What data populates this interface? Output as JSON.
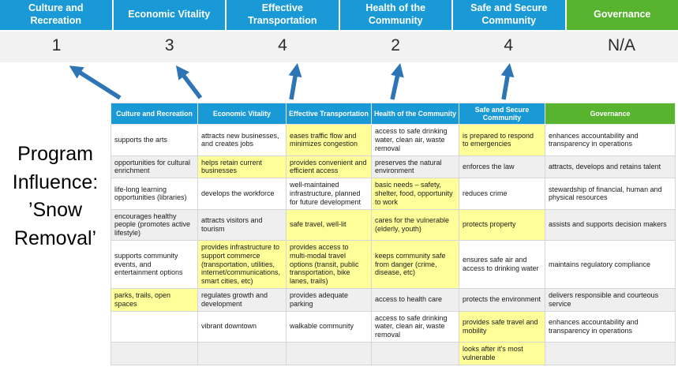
{
  "title": {
    "text": "Program Influence: ’Snow Removal’"
  },
  "colors": {
    "blue": "#1999D6",
    "green": "#58B32F",
    "highlight": "#FFFF99",
    "arrow": "#2E75B6",
    "scorebg": "#F2F2F2",
    "band": "#EFEFEF",
    "border": "#D6D6D6"
  },
  "summary": {
    "columns": [
      {
        "label": "Culture and Recreation",
        "score": "1",
        "theme": "blue"
      },
      {
        "label": "Economic Vitality",
        "score": "3",
        "theme": "blue"
      },
      {
        "label": "Effective Transportation",
        "score": "4",
        "theme": "blue"
      },
      {
        "label": "Health of the Community",
        "score": "2",
        "theme": "blue"
      },
      {
        "label": "Safe and Secure Community",
        "score": "4",
        "theme": "blue"
      },
      {
        "label": "Governance",
        "score": "N/A",
        "theme": "green"
      }
    ]
  },
  "matrix": {
    "headers": [
      {
        "label": "Culture and Recreation",
        "theme": "blue"
      },
      {
        "label": "Economic Vitality",
        "theme": "blue"
      },
      {
        "label": "Effective Transportation",
        "theme": "blue"
      },
      {
        "label": "Health of the Community",
        "theme": "blue"
      },
      {
        "label": "Safe and Secure Community",
        "theme": "blue"
      },
      {
        "label": "Governance",
        "theme": "green"
      }
    ],
    "rows": [
      [
        {
          "text": "supports the arts",
          "highlight": false
        },
        {
          "text": "attracts new businesses, and creates jobs",
          "highlight": false
        },
        {
          "text": "eases traffic flow and minimizes congestion",
          "highlight": true
        },
        {
          "text": "access to safe drinking water, clean air, waste removal",
          "highlight": false
        },
        {
          "text": "is prepared to respond to emergencies",
          "highlight": true
        },
        {
          "text": "enhances accountability and transparency in operations",
          "highlight": false
        }
      ],
      [
        {
          "text": "opportunities for cultural enrichment",
          "highlight": false
        },
        {
          "text": "helps retain current businesses",
          "highlight": true
        },
        {
          "text": "provides convenient and efficient access",
          "highlight": true
        },
        {
          "text": "preserves the natural environment",
          "highlight": false
        },
        {
          "text": "enforces the law",
          "highlight": false
        },
        {
          "text": "attracts, develops and retains talent",
          "highlight": false
        }
      ],
      [
        {
          "text": "life-long learning opportunities (libraries)",
          "highlight": false
        },
        {
          "text": "develops the workforce",
          "highlight": false
        },
        {
          "text": "well-maintained infrastructure, planned for future development",
          "highlight": false
        },
        {
          "text": "basic needs – safety, shelter, food, opportunity to work",
          "highlight": true
        },
        {
          "text": "reduces crime",
          "highlight": false
        },
        {
          "text": "stewardship of financial, human and physical resources",
          "highlight": false
        }
      ],
      [
        {
          "text": "encourages healthy people (promotes active lifestyle)",
          "highlight": false
        },
        {
          "text": "attracts visitors and tourism",
          "highlight": false
        },
        {
          "text": "safe travel, well-lit",
          "highlight": true
        },
        {
          "text": "cares for the vulnerable (elderly, youth)",
          "highlight": true
        },
        {
          "text": "protects property",
          "highlight": true
        },
        {
          "text": "assists and supports decision makers",
          "highlight": false
        }
      ],
      [
        {
          "text": "supports community events, and entertainment options",
          "highlight": false
        },
        {
          "text": "provides infrastructure to support commerce (transportation, utilities, internet/communications, smart cities, etc)",
          "highlight": true
        },
        {
          "text": "provides access to multi-modal travel options (transit, public transportation, bike lanes, trails)",
          "highlight": true
        },
        {
          "text": "keeps community safe from danger (crime, disease, etc)",
          "highlight": true
        },
        {
          "text": "ensures safe air and access to drinking water",
          "highlight": false
        },
        {
          "text": "maintains regulatory compliance",
          "highlight": false
        }
      ],
      [
        {
          "text": "parks, trails, open spaces",
          "highlight": true
        },
        {
          "text": "regulates growth and development",
          "highlight": false
        },
        {
          "text": "provides adequate parking",
          "highlight": false
        },
        {
          "text": "access to health care",
          "highlight": false
        },
        {
          "text": "protects the environment",
          "highlight": false
        },
        {
          "text": "delivers responsible and courteous service",
          "highlight": false
        }
      ],
      [
        {
          "text": "",
          "highlight": false
        },
        {
          "text": "vibrant downtown",
          "highlight": false
        },
        {
          "text": "walkable community",
          "highlight": false
        },
        {
          "text": "access to safe drinking water, clean air, waste removal",
          "highlight": false
        },
        {
          "text": "provides safe travel and mobility",
          "highlight": true
        },
        {
          "text": "enhances accountability and transparency in operations",
          "highlight": false
        }
      ],
      [
        {
          "text": "",
          "highlight": false
        },
        {
          "text": "",
          "highlight": false
        },
        {
          "text": "",
          "highlight": false
        },
        {
          "text": "",
          "highlight": false
        },
        {
          "text": "looks after it's most vulnerable",
          "highlight": true
        },
        {
          "text": "",
          "highlight": false
        }
      ]
    ]
  }
}
